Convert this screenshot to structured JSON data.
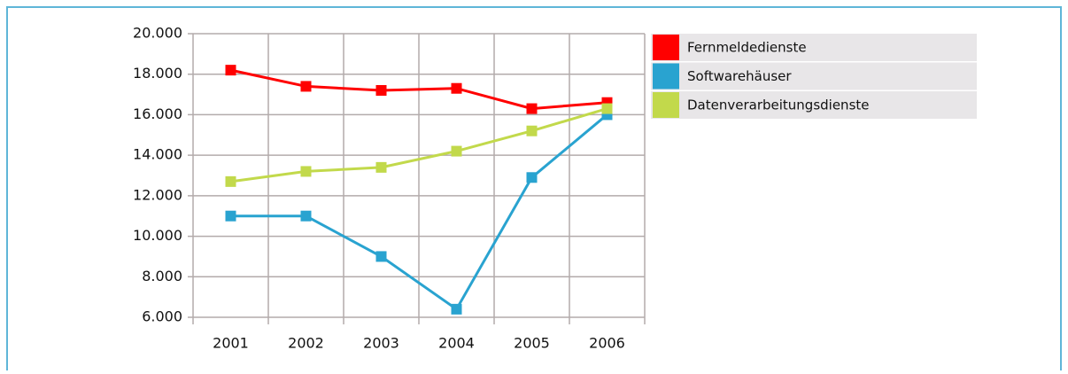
{
  "chart_data": {
    "type": "line",
    "categories": [
      "2001",
      "2002",
      "2003",
      "2004",
      "2005",
      "2006"
    ],
    "series": [
      {
        "name": "Fernmeldedienste",
        "color": "#ff0000",
        "values": [
          18200,
          17400,
          17200,
          17300,
          16300,
          16600
        ]
      },
      {
        "name": "Softwarehäuser",
        "color": "#29a3d0",
        "values": [
          11000,
          11000,
          9000,
          6400,
          12900,
          16000
        ]
      },
      {
        "name": "Datenverarbeitungsdienste",
        "color": "#c2d94b",
        "values": [
          12700,
          13200,
          13400,
          14200,
          15200,
          16300
        ]
      }
    ],
    "ylim": [
      6000,
      20000
    ],
    "yticks": [
      {
        "value": 6000,
        "label": "6.000"
      },
      {
        "value": 8000,
        "label": "8.000"
      },
      {
        "value": 10000,
        "label": "10.000"
      },
      {
        "value": 12000,
        "label": "12.000"
      },
      {
        "value": 14000,
        "label": "14.000"
      },
      {
        "value": 16000,
        "label": "16.000"
      },
      {
        "value": 18000,
        "label": "18.000"
      },
      {
        "value": 20000,
        "label": "20.000"
      }
    ],
    "grid": true,
    "legend": "right"
  }
}
